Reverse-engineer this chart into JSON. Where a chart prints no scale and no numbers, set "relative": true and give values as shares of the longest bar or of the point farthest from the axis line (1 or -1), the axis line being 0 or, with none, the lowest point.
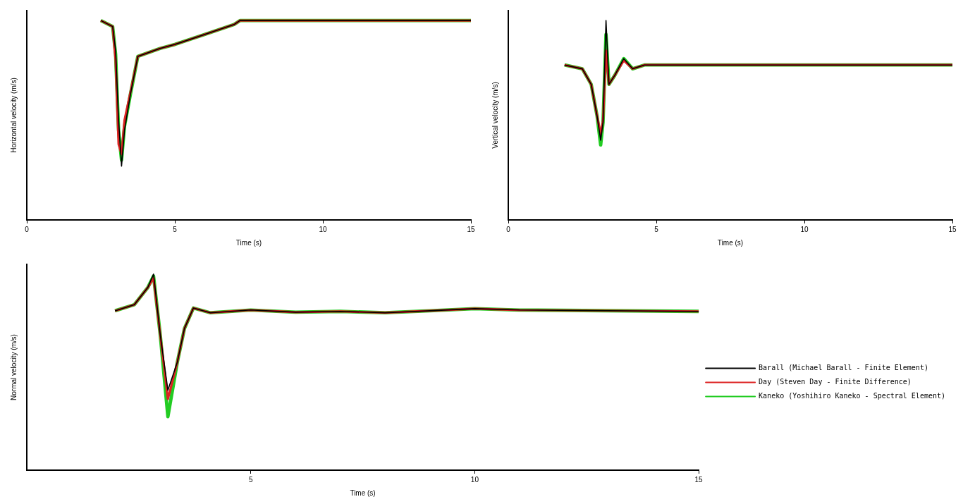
{
  "chart_data": [
    {
      "type": "line",
      "xlabel": "Time (s)",
      "ylabel": "Horizontal velocity (m/s)",
      "relative": true,
      "xlim": [
        0,
        15
      ],
      "xticks": [
        0,
        5,
        10,
        15
      ],
      "grid": false,
      "legend": false,
      "marker": "none",
      "x": [
        2.5,
        2.9,
        3.0,
        3.1,
        3.2,
        3.3,
        3.5,
        3.75,
        4.5,
        5,
        6,
        7,
        7.2,
        10,
        15
      ],
      "series": [
        {
          "color": "#000000",
          "values": [
            1,
            0.97,
            0.85,
            0.5,
            0.27,
            0.45,
            0.63,
            0.82,
            0.86,
            0.88,
            0.93,
            0.98,
            1,
            1,
            1
          ]
        },
        {
          "color": "#dd2222",
          "values": [
            1,
            0.97,
            0.8,
            0.38,
            0.33,
            0.5,
            0.64,
            0.82,
            0.86,
            0.88,
            0.93,
            0.98,
            1,
            1,
            1
          ]
        },
        {
          "color": "#22cc22",
          "values": [
            1,
            0.97,
            0.83,
            0.45,
            0.3,
            0.47,
            0.63,
            0.82,
            0.86,
            0.88,
            0.93,
            0.98,
            1,
            1,
            1
          ]
        }
      ]
    },
    {
      "type": "line",
      "xlabel": "Time (s)",
      "ylabel": "Vertical velocity (m/s)",
      "relative": true,
      "xlim": [
        0,
        15
      ],
      "xticks": [
        0,
        5,
        10,
        15
      ],
      "grid": false,
      "legend": false,
      "marker": "none",
      "x": [
        1.9,
        2.5,
        2.8,
        3.0,
        3.12,
        3.2,
        3.3,
        3.4,
        3.6,
        3.9,
        4.2,
        4.6,
        15
      ],
      "series": [
        {
          "color": "#000000",
          "values": [
            0.777,
            0.758,
            0.68,
            0.52,
            0.4,
            0.49,
            1,
            0.68,
            0.726,
            0.809,
            0.758,
            0.777,
            0.777
          ]
        },
        {
          "color": "#dd2222",
          "values": [
            0.777,
            0.758,
            0.68,
            0.52,
            0.43,
            0.5,
            0.85,
            0.68,
            0.726,
            0.8,
            0.758,
            0.777,
            0.777
          ]
        },
        {
          "color": "#22cc22",
          "values": [
            0.777,
            0.758,
            0.68,
            0.52,
            0.376,
            0.49,
            0.93,
            0.68,
            0.726,
            0.809,
            0.758,
            0.777,
            0.777
          ]
        }
      ]
    },
    {
      "type": "line",
      "xlabel": "Time (s)",
      "ylabel": "Normal velocity (m/s)",
      "relative": true,
      "xlim": [
        0,
        15
      ],
      "xticks": [
        5,
        10,
        15
      ],
      "grid": false,
      "legend": "right",
      "marker": "none",
      "x": [
        1.97,
        2.4,
        2.7,
        2.83,
        2.98,
        3.15,
        3.36,
        3.52,
        3.72,
        4.1,
        5,
        6,
        7,
        8,
        9,
        10,
        11,
        15
      ],
      "series": [
        {
          "name": "Barall (Michael Barall - Finite Element)",
          "color": "#000000",
          "values": [
            0.813,
            0.844,
            0.931,
            1,
            0.689,
            0.408,
            0.55,
            0.723,
            0.827,
            0.803,
            0.817,
            0.806,
            0.81,
            0.803,
            0.813,
            0.824,
            0.817,
            0.81
          ]
        },
        {
          "name": "Day (Steven Day - Finite Difference)",
          "color": "#dd2222",
          "values": [
            0.813,
            0.844,
            0.931,
            0.98,
            0.689,
            0.363,
            0.55,
            0.723,
            0.827,
            0.803,
            0.817,
            0.806,
            0.81,
            0.803,
            0.813,
            0.824,
            0.817,
            0.81
          ]
        },
        {
          "name": "Kaneko (Yoshihiro Kaneko - Spectral Element)",
          "color": "#22cc22",
          "values": [
            0.813,
            0.844,
            0.931,
            0.99,
            0.689,
            0.273,
            0.55,
            0.723,
            0.827,
            0.803,
            0.817,
            0.806,
            0.81,
            0.803,
            0.813,
            0.824,
            0.817,
            0.81
          ]
        }
      ]
    }
  ]
}
